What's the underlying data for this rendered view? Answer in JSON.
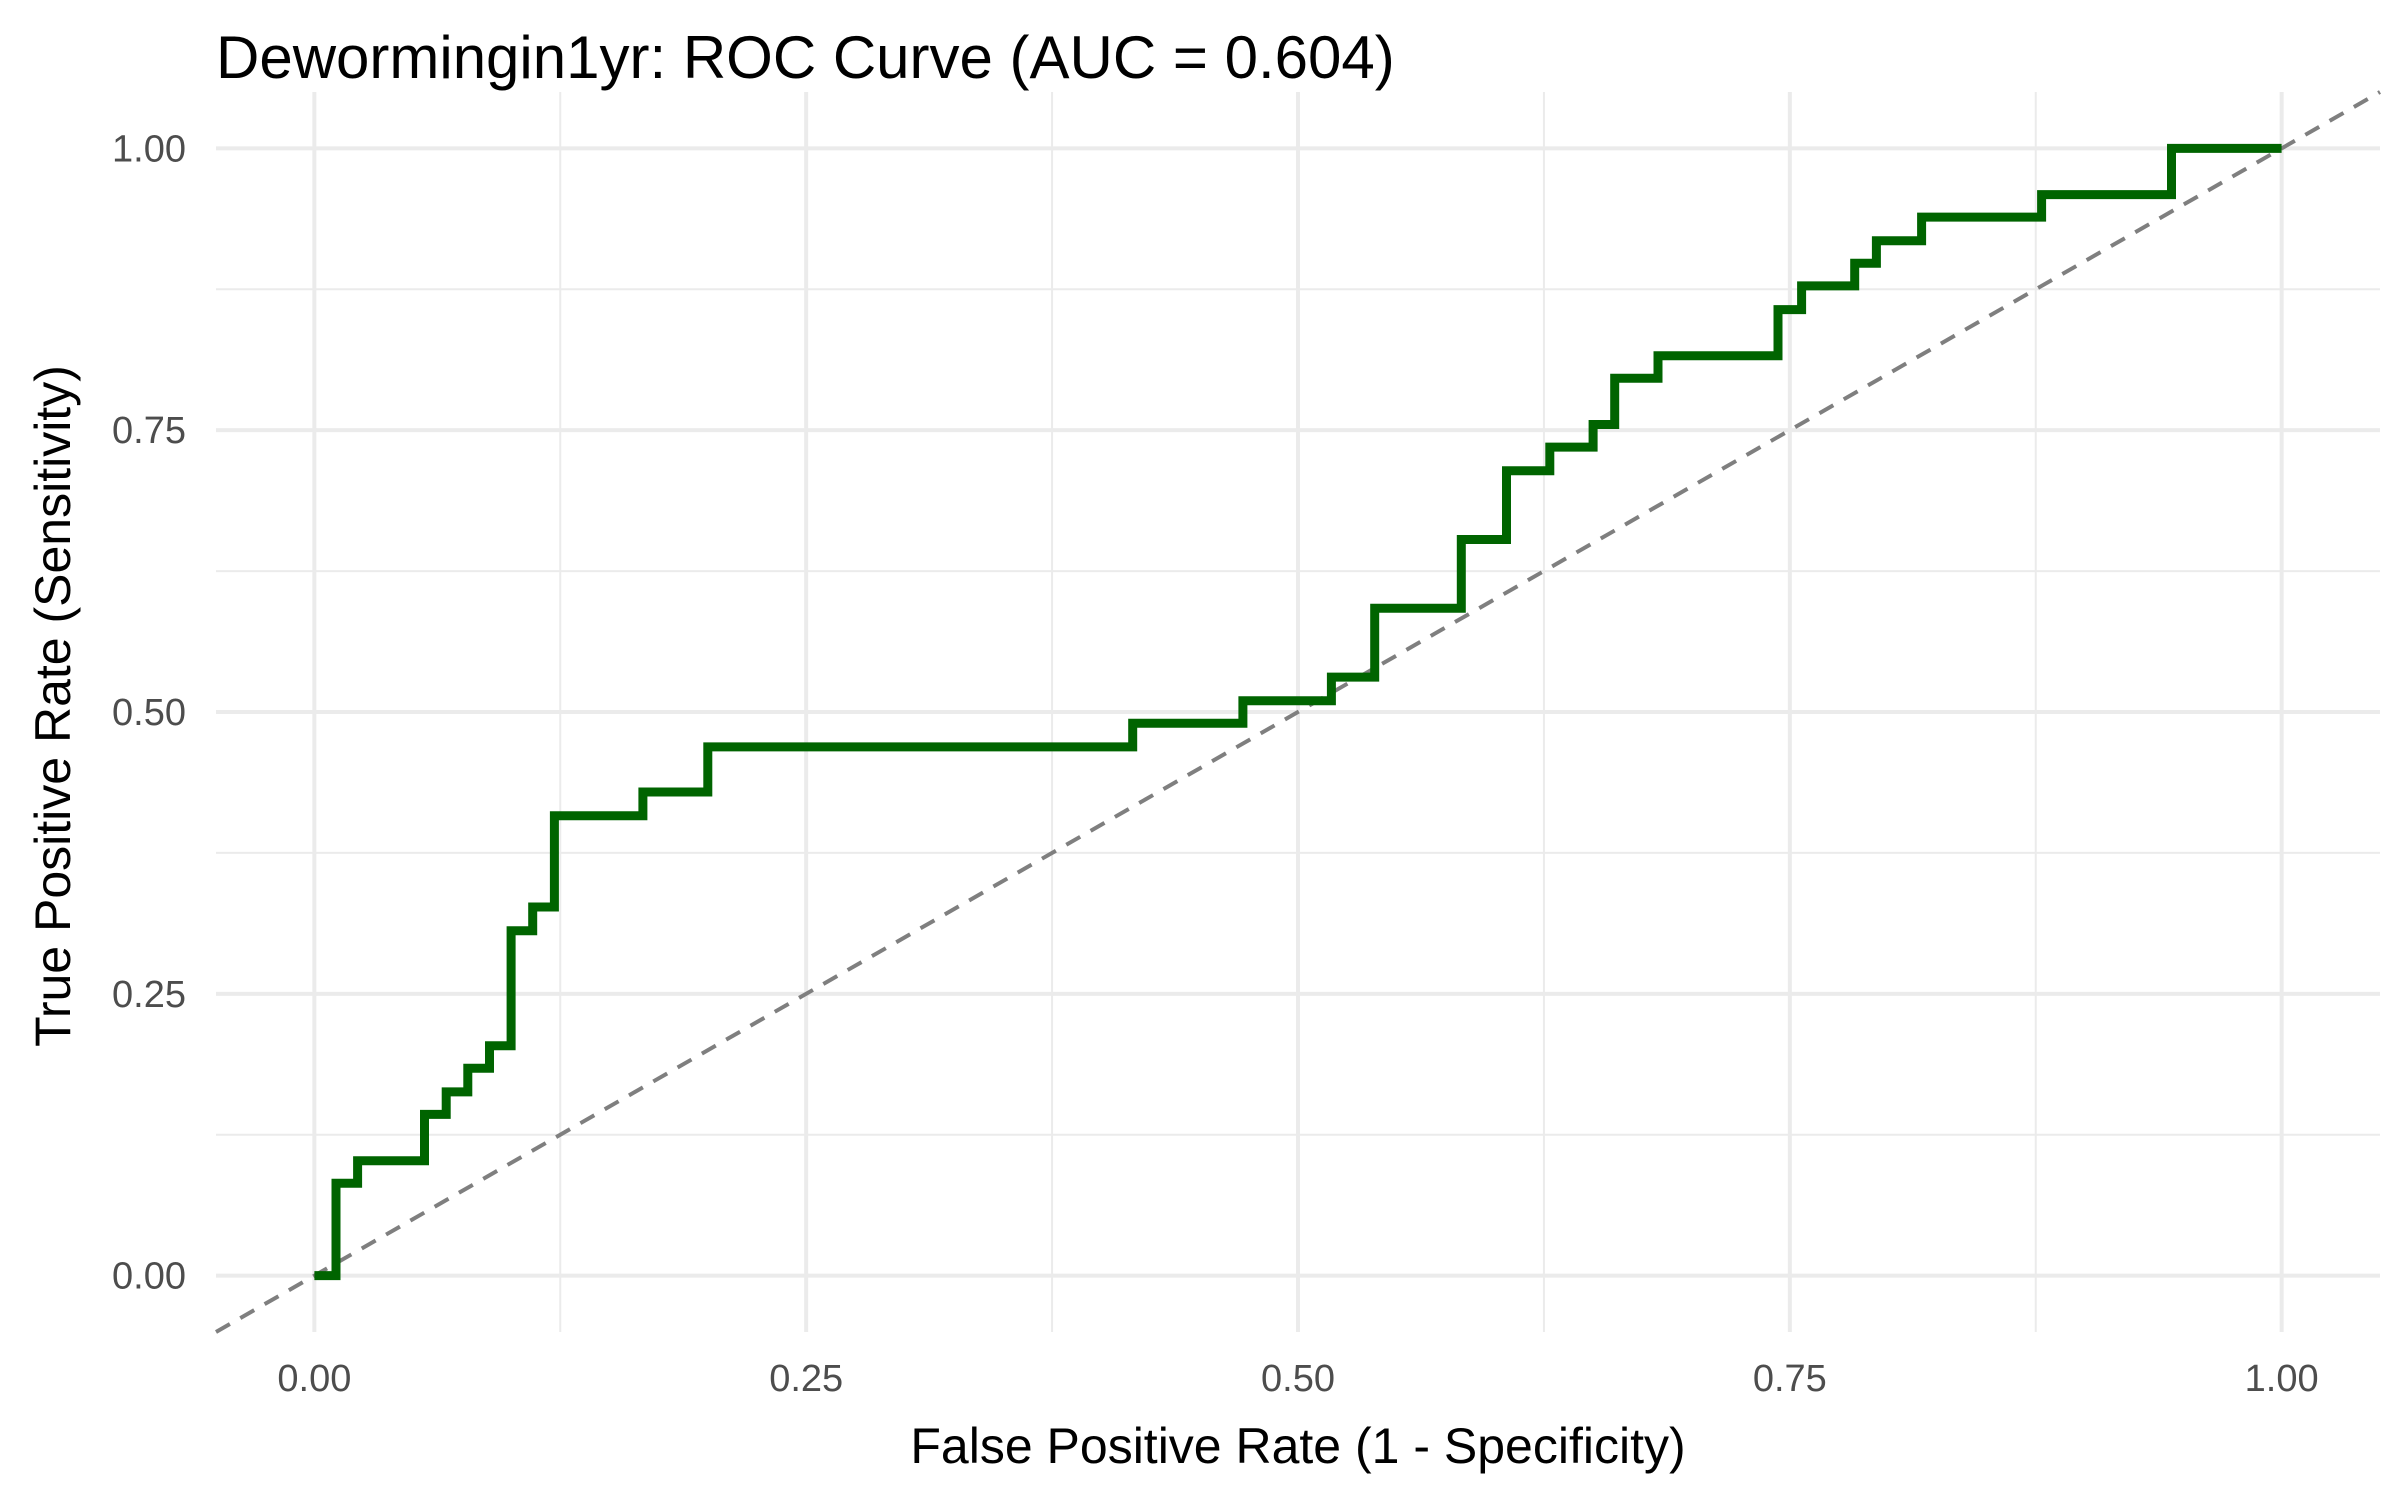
{
  "chart_data": {
    "type": "line",
    "title": "Dewormingin1yr: ROC Curve (AUC = 0.604)",
    "xlabel": "False Positive Rate (1 - Specificity)",
    "ylabel": "True Positive Rate (Sensitivity)",
    "xlim": [
      -0.05,
      1.05
    ],
    "ylim": [
      -0.05,
      1.05
    ],
    "x_ticks": [
      0,
      0.25,
      0.5,
      0.75,
      1
    ],
    "x_tick_labels": [
      "0.00",
      "0.25",
      "0.50",
      "0.75",
      "1.00"
    ],
    "y_ticks": [
      0,
      0.25,
      0.5,
      0.75,
      1
    ],
    "y_tick_labels": [
      "0.00",
      "0.25",
      "0.50",
      "0.75",
      "1.00"
    ],
    "grid": true,
    "legend": "none",
    "series": [
      {
        "style": "step",
        "color": "#006400",
        "points": [
          [
            0.0,
            0.0
          ],
          [
            0.011,
            0.0
          ],
          [
            0.011,
            0.082
          ],
          [
            0.022,
            0.082
          ],
          [
            0.022,
            0.102
          ],
          [
            0.056,
            0.102
          ],
          [
            0.056,
            0.143
          ],
          [
            0.067,
            0.143
          ],
          [
            0.067,
            0.163
          ],
          [
            0.078,
            0.163
          ],
          [
            0.078,
            0.184
          ],
          [
            0.089,
            0.184
          ],
          [
            0.089,
            0.204
          ],
          [
            0.1,
            0.204
          ],
          [
            0.1,
            0.306
          ],
          [
            0.111,
            0.306
          ],
          [
            0.111,
            0.327
          ],
          [
            0.122,
            0.327
          ],
          [
            0.122,
            0.408
          ],
          [
            0.167,
            0.408
          ],
          [
            0.167,
            0.429
          ],
          [
            0.2,
            0.429
          ],
          [
            0.2,
            0.469
          ],
          [
            0.416,
            0.469
          ],
          [
            0.416,
            0.49
          ],
          [
            0.472,
            0.49
          ],
          [
            0.472,
            0.51
          ],
          [
            0.517,
            0.51
          ],
          [
            0.517,
            0.531
          ],
          [
            0.539,
            0.531
          ],
          [
            0.539,
            0.592
          ],
          [
            0.583,
            0.592
          ],
          [
            0.583,
            0.653
          ],
          [
            0.606,
            0.653
          ],
          [
            0.606,
            0.714
          ],
          [
            0.628,
            0.714
          ],
          [
            0.628,
            0.735
          ],
          [
            0.65,
            0.735
          ],
          [
            0.65,
            0.755
          ],
          [
            0.661,
            0.755
          ],
          [
            0.661,
            0.796
          ],
          [
            0.683,
            0.796
          ],
          [
            0.683,
            0.816
          ],
          [
            0.744,
            0.816
          ],
          [
            0.744,
            0.857
          ],
          [
            0.756,
            0.857
          ],
          [
            0.756,
            0.878
          ],
          [
            0.783,
            0.878
          ],
          [
            0.783,
            0.898
          ],
          [
            0.794,
            0.898
          ],
          [
            0.794,
            0.918
          ],
          [
            0.817,
            0.918
          ],
          [
            0.817,
            0.939
          ],
          [
            0.878,
            0.939
          ],
          [
            0.878,
            0.959
          ],
          [
            0.944,
            0.959
          ],
          [
            0.944,
            1.0
          ],
          [
            1.0,
            1.0
          ]
        ]
      },
      {
        "style": "dashed",
        "color": "#7f7f7f",
        "points": [
          [
            -0.05,
            -0.05
          ],
          [
            1.05,
            1.05
          ]
        ]
      }
    ]
  }
}
